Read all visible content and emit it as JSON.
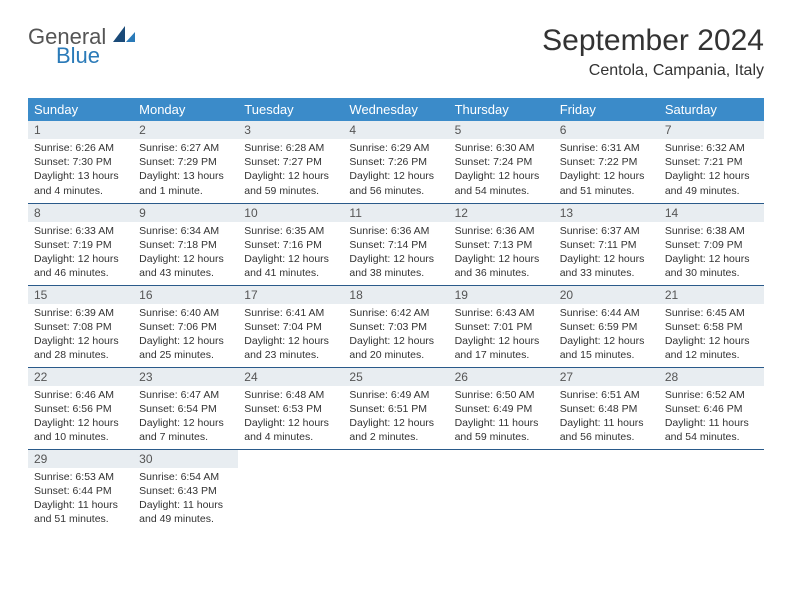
{
  "brand": {
    "general": "General",
    "blue": "Blue"
  },
  "title": "September 2024",
  "location": "Centola, Campania, Italy",
  "theme": {
    "header_bg": "#3b8bc9",
    "header_fg": "#ffffff",
    "daynum_bg": "#e8edf1",
    "border_color": "#2a5a8a",
    "logo_blue": "#2a7ab8",
    "logo_dark": "#1a4a78"
  },
  "weekdays": [
    "Sunday",
    "Monday",
    "Tuesday",
    "Wednesday",
    "Thursday",
    "Friday",
    "Saturday"
  ],
  "weeks": [
    [
      {
        "n": "1",
        "sr": "6:26 AM",
        "ss": "7:30 PM",
        "dl": "13 hours and 4 minutes."
      },
      {
        "n": "2",
        "sr": "6:27 AM",
        "ss": "7:29 PM",
        "dl": "13 hours and 1 minute."
      },
      {
        "n": "3",
        "sr": "6:28 AM",
        "ss": "7:27 PM",
        "dl": "12 hours and 59 minutes."
      },
      {
        "n": "4",
        "sr": "6:29 AM",
        "ss": "7:26 PM",
        "dl": "12 hours and 56 minutes."
      },
      {
        "n": "5",
        "sr": "6:30 AM",
        "ss": "7:24 PM",
        "dl": "12 hours and 54 minutes."
      },
      {
        "n": "6",
        "sr": "6:31 AM",
        "ss": "7:22 PM",
        "dl": "12 hours and 51 minutes."
      },
      {
        "n": "7",
        "sr": "6:32 AM",
        "ss": "7:21 PM",
        "dl": "12 hours and 49 minutes."
      }
    ],
    [
      {
        "n": "8",
        "sr": "6:33 AM",
        "ss": "7:19 PM",
        "dl": "12 hours and 46 minutes."
      },
      {
        "n": "9",
        "sr": "6:34 AM",
        "ss": "7:18 PM",
        "dl": "12 hours and 43 minutes."
      },
      {
        "n": "10",
        "sr": "6:35 AM",
        "ss": "7:16 PM",
        "dl": "12 hours and 41 minutes."
      },
      {
        "n": "11",
        "sr": "6:36 AM",
        "ss": "7:14 PM",
        "dl": "12 hours and 38 minutes."
      },
      {
        "n": "12",
        "sr": "6:36 AM",
        "ss": "7:13 PM",
        "dl": "12 hours and 36 minutes."
      },
      {
        "n": "13",
        "sr": "6:37 AM",
        "ss": "7:11 PM",
        "dl": "12 hours and 33 minutes."
      },
      {
        "n": "14",
        "sr": "6:38 AM",
        "ss": "7:09 PM",
        "dl": "12 hours and 30 minutes."
      }
    ],
    [
      {
        "n": "15",
        "sr": "6:39 AM",
        "ss": "7:08 PM",
        "dl": "12 hours and 28 minutes."
      },
      {
        "n": "16",
        "sr": "6:40 AM",
        "ss": "7:06 PM",
        "dl": "12 hours and 25 minutes."
      },
      {
        "n": "17",
        "sr": "6:41 AM",
        "ss": "7:04 PM",
        "dl": "12 hours and 23 minutes."
      },
      {
        "n": "18",
        "sr": "6:42 AM",
        "ss": "7:03 PM",
        "dl": "12 hours and 20 minutes."
      },
      {
        "n": "19",
        "sr": "6:43 AM",
        "ss": "7:01 PM",
        "dl": "12 hours and 17 minutes."
      },
      {
        "n": "20",
        "sr": "6:44 AM",
        "ss": "6:59 PM",
        "dl": "12 hours and 15 minutes."
      },
      {
        "n": "21",
        "sr": "6:45 AM",
        "ss": "6:58 PM",
        "dl": "12 hours and 12 minutes."
      }
    ],
    [
      {
        "n": "22",
        "sr": "6:46 AM",
        "ss": "6:56 PM",
        "dl": "12 hours and 10 minutes."
      },
      {
        "n": "23",
        "sr": "6:47 AM",
        "ss": "6:54 PM",
        "dl": "12 hours and 7 minutes."
      },
      {
        "n": "24",
        "sr": "6:48 AM",
        "ss": "6:53 PM",
        "dl": "12 hours and 4 minutes."
      },
      {
        "n": "25",
        "sr": "6:49 AM",
        "ss": "6:51 PM",
        "dl": "12 hours and 2 minutes."
      },
      {
        "n": "26",
        "sr": "6:50 AM",
        "ss": "6:49 PM",
        "dl": "11 hours and 59 minutes."
      },
      {
        "n": "27",
        "sr": "6:51 AM",
        "ss": "6:48 PM",
        "dl": "11 hours and 56 minutes."
      },
      {
        "n": "28",
        "sr": "6:52 AM",
        "ss": "6:46 PM",
        "dl": "11 hours and 54 minutes."
      }
    ],
    [
      {
        "n": "29",
        "sr": "6:53 AM",
        "ss": "6:44 PM",
        "dl": "11 hours and 51 minutes."
      },
      {
        "n": "30",
        "sr": "6:54 AM",
        "ss": "6:43 PM",
        "dl": "11 hours and 49 minutes."
      },
      null,
      null,
      null,
      null,
      null
    ]
  ],
  "labels": {
    "sunrise": "Sunrise:",
    "sunset": "Sunset:",
    "daylight": "Daylight:"
  }
}
